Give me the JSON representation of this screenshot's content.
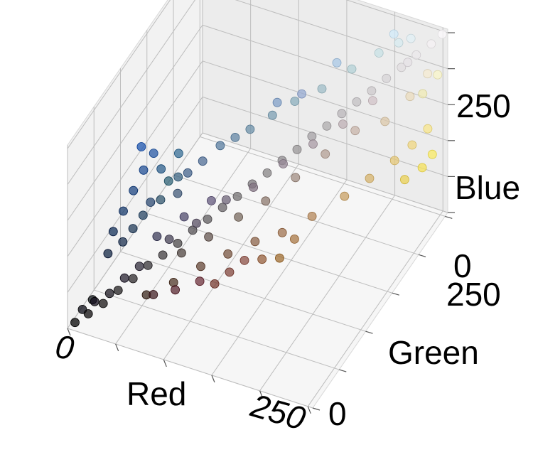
{
  "chart_data": {
    "type": "scatter",
    "subtype": "3d-scatter",
    "xlabel": "Red",
    "ylabel": "Green",
    "zlabel": "Blue",
    "xlim": [
      0,
      255
    ],
    "ylim": [
      0,
      255
    ],
    "zlim": [
      0,
      255
    ],
    "x_ticks": [
      "0",
      "250"
    ],
    "y_ticks": [
      "0",
      "250"
    ],
    "z_ticks": [
      "0",
      "250"
    ],
    "grid": true,
    "point_color_rule": "rgb(Red, Green, Blue)",
    "points": [
      {
        "x": 5,
        "y": 5,
        "z": 5
      },
      {
        "x": 15,
        "y": 12,
        "z": 14
      },
      {
        "x": 25,
        "y": 22,
        "z": 22
      },
      {
        "x": 35,
        "y": 32,
        "z": 34
      },
      {
        "x": 45,
        "y": 42,
        "z": 44
      },
      {
        "x": 55,
        "y": 52,
        "z": 56
      },
      {
        "x": 65,
        "y": 62,
        "z": 64
      },
      {
        "x": 75,
        "y": 72,
        "z": 74
      },
      {
        "x": 85,
        "y": 82,
        "z": 86
      },
      {
        "x": 95,
        "y": 92,
        "z": 95
      },
      {
        "x": 105,
        "y": 102,
        "z": 105
      },
      {
        "x": 115,
        "y": 112,
        "z": 114
      },
      {
        "x": 125,
        "y": 122,
        "z": 125
      },
      {
        "x": 135,
        "y": 132,
        "z": 134
      },
      {
        "x": 145,
        "y": 142,
        "z": 145
      },
      {
        "x": 155,
        "y": 152,
        "z": 154
      },
      {
        "x": 165,
        "y": 162,
        "z": 166
      },
      {
        "x": 175,
        "y": 172,
        "z": 174
      },
      {
        "x": 185,
        "y": 182,
        "z": 185
      },
      {
        "x": 195,
        "y": 192,
        "z": 195
      },
      {
        "x": 205,
        "y": 202,
        "z": 204
      },
      {
        "x": 215,
        "y": 212,
        "z": 215
      },
      {
        "x": 225,
        "y": 222,
        "z": 224
      },
      {
        "x": 235,
        "y": 232,
        "z": 235
      },
      {
        "x": 245,
        "y": 242,
        "z": 244
      },
      {
        "x": 252,
        "y": 250,
        "z": 252
      },
      {
        "x": 60,
        "y": 40,
        "z": 30
      },
      {
        "x": 80,
        "y": 55,
        "z": 40
      },
      {
        "x": 100,
        "y": 70,
        "z": 55
      },
      {
        "x": 120,
        "y": 85,
        "z": 65
      },
      {
        "x": 140,
        "y": 100,
        "z": 75
      },
      {
        "x": 160,
        "y": 115,
        "z": 80
      },
      {
        "x": 180,
        "y": 135,
        "z": 90
      },
      {
        "x": 200,
        "y": 160,
        "z": 100
      },
      {
        "x": 215,
        "y": 180,
        "z": 110
      },
      {
        "x": 230,
        "y": 200,
        "z": 120
      },
      {
        "x": 240,
        "y": 215,
        "z": 130
      },
      {
        "x": 248,
        "y": 230,
        "z": 140
      },
      {
        "x": 250,
        "y": 235,
        "z": 100
      },
      {
        "x": 245,
        "y": 225,
        "z": 90
      },
      {
        "x": 235,
        "y": 210,
        "z": 85
      },
      {
        "x": 120,
        "y": 60,
        "z": 50
      },
      {
        "x": 130,
        "y": 70,
        "z": 60
      },
      {
        "x": 140,
        "y": 80,
        "z": 70
      },
      {
        "x": 110,
        "y": 50,
        "z": 60
      },
      {
        "x": 90,
        "y": 40,
        "z": 50
      },
      {
        "x": 70,
        "y": 35,
        "z": 40
      },
      {
        "x": 150,
        "y": 95,
        "z": 60
      },
      {
        "x": 170,
        "y": 120,
        "z": 70
      },
      {
        "x": 160,
        "y": 110,
        "z": 50
      },
      {
        "x": 20,
        "y": 50,
        "z": 90
      },
      {
        "x": 25,
        "y": 60,
        "z": 110
      },
      {
        "x": 30,
        "y": 70,
        "z": 130
      },
      {
        "x": 35,
        "y": 80,
        "z": 150
      },
      {
        "x": 40,
        "y": 90,
        "z": 165
      },
      {
        "x": 30,
        "y": 85,
        "z": 175
      },
      {
        "x": 45,
        "y": 95,
        "z": 140
      },
      {
        "x": 50,
        "y": 100,
        "z": 120
      },
      {
        "x": 55,
        "y": 110,
        "z": 150
      },
      {
        "x": 60,
        "y": 100,
        "z": 130
      },
      {
        "x": 40,
        "y": 70,
        "z": 100
      },
      {
        "x": 35,
        "y": 60,
        "z": 90
      },
      {
        "x": 20,
        "y": 40,
        "z": 70
      },
      {
        "x": 30,
        "y": 50,
        "z": 80
      },
      {
        "x": 45,
        "y": 75,
        "z": 115
      },
      {
        "x": 50,
        "y": 85,
        "z": 110
      },
      {
        "x": 65,
        "y": 90,
        "z": 120
      },
      {
        "x": 70,
        "y": 100,
        "z": 140
      },
      {
        "x": 80,
        "y": 110,
        "z": 150
      },
      {
        "x": 90,
        "y": 125,
        "z": 160
      },
      {
        "x": 100,
        "y": 135,
        "z": 165
      },
      {
        "x": 110,
        "y": 145,
        "z": 170
      },
      {
        "x": 125,
        "y": 160,
        "z": 180
      },
      {
        "x": 140,
        "y": 175,
        "z": 190
      },
      {
        "x": 160,
        "y": 190,
        "z": 200
      },
      {
        "x": 180,
        "y": 210,
        "z": 215
      },
      {
        "x": 200,
        "y": 225,
        "z": 230
      },
      {
        "x": 215,
        "y": 235,
        "z": 240
      },
      {
        "x": 225,
        "y": 240,
        "z": 245
      },
      {
        "x": 210,
        "y": 235,
        "z": 250
      },
      {
        "x": 150,
        "y": 170,
        "z": 210
      },
      {
        "x": 130,
        "y": 160,
        "z": 200
      },
      {
        "x": 170,
        "y": 200,
        "z": 230
      },
      {
        "x": 60,
        "y": 60,
        "z": 90
      },
      {
        "x": 80,
        "y": 75,
        "z": 110
      },
      {
        "x": 100,
        "y": 90,
        "z": 125
      },
      {
        "x": 90,
        "y": 80,
        "z": 100
      },
      {
        "x": 70,
        "y": 65,
        "z": 85
      },
      {
        "x": 110,
        "y": 100,
        "z": 120
      },
      {
        "x": 130,
        "y": 115,
        "z": 130
      },
      {
        "x": 150,
        "y": 135,
        "z": 150
      },
      {
        "x": 170,
        "y": 155,
        "z": 165
      },
      {
        "x": 190,
        "y": 175,
        "z": 180
      },
      {
        "x": 210,
        "y": 195,
        "z": 200
      },
      {
        "x": 200,
        "y": 180,
        "z": 170
      },
      {
        "x": 180,
        "y": 160,
        "z": 150
      },
      {
        "x": 160,
        "y": 140,
        "z": 130
      },
      {
        "x": 140,
        "y": 120,
        "z": 110
      },
      {
        "x": 120,
        "y": 105,
        "z": 95
      },
      {
        "x": 100,
        "y": 85,
        "z": 80
      },
      {
        "x": 80,
        "y": 70,
        "z": 65
      },
      {
        "x": 50,
        "y": 45,
        "z": 60
      },
      {
        "x": 40,
        "y": 35,
        "z": 50
      },
      {
        "x": 30,
        "y": 25,
        "z": 35
      },
      {
        "x": 10,
        "y": 10,
        "z": 20
      },
      {
        "x": 20,
        "y": 15,
        "z": 30
      },
      {
        "x": 15,
        "y": 20,
        "z": 25
      },
      {
        "x": 220,
        "y": 200,
        "z": 170
      },
      {
        "x": 235,
        "y": 220,
        "z": 190
      },
      {
        "x": 245,
        "y": 235,
        "z": 210
      },
      {
        "x": 240,
        "y": 235,
        "z": 180
      },
      {
        "x": 250,
        "y": 245,
        "z": 200
      },
      {
        "x": 230,
        "y": 225,
        "z": 230
      }
    ]
  }
}
